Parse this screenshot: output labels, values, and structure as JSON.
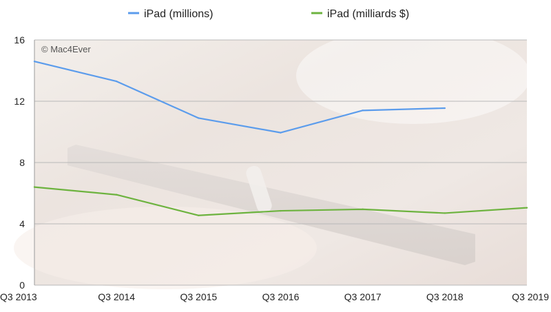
{
  "watermark": "© Mac4Ever",
  "chart_data": {
    "type": "line",
    "categories": [
      "Q3 2013",
      "Q3 2014",
      "Q3 2015",
      "Q3 2016",
      "Q3 2017",
      "Q3 2018",
      "Q3 2019"
    ],
    "ylim": [
      0,
      16
    ],
    "yticks": [
      "0",
      "4",
      "8",
      "12",
      "16"
    ],
    "grid": true,
    "legend_position": "top",
    "series": [
      {
        "name": "iPad (millions)",
        "color": "#5b9cec",
        "values": [
          14.6,
          13.3,
          10.9,
          9.95,
          11.4,
          11.55,
          null
        ]
      },
      {
        "name": "iPad (milliards $)",
        "color": "#6db33f",
        "values": [
          6.4,
          5.9,
          4.55,
          4.85,
          4.95,
          4.7,
          5.05
        ]
      }
    ]
  }
}
